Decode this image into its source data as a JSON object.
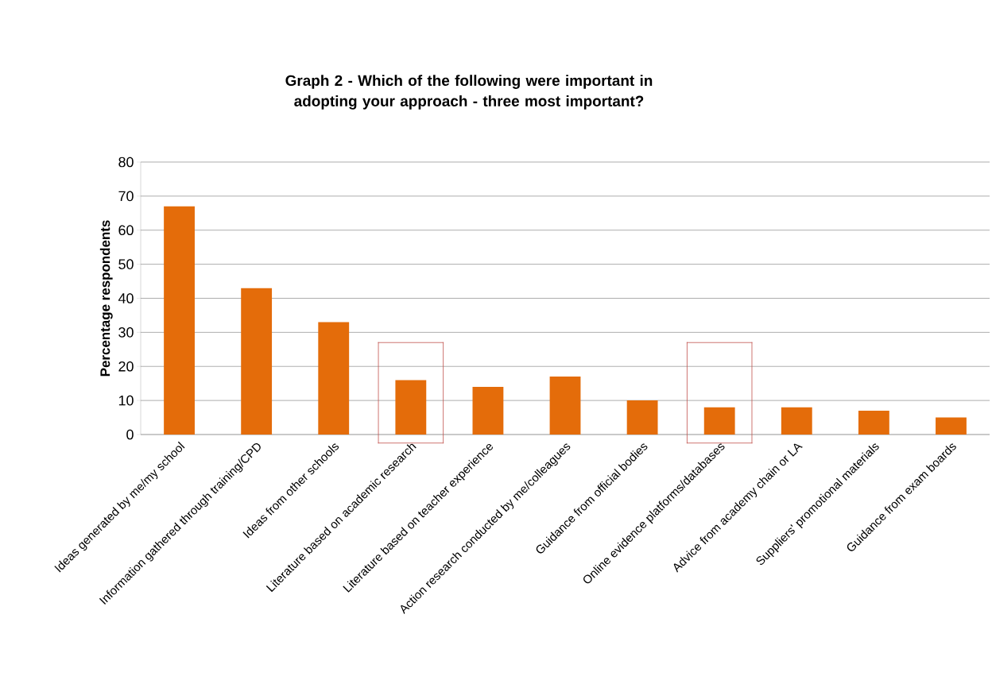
{
  "chart_data": {
    "type": "bar",
    "title": "Graph 2 - Which of the following were important in adopting your approach - three most important?",
    "ylabel": "Percentage respondents",
    "categories": [
      "Ideas generated by me/my school",
      "Information gathered through training/CPD",
      "Ideas from other schools",
      "Literature based on academic research",
      "Literature based on teacher experience",
      "Action research conducted by me/colleagues",
      "Guidance from official bodies",
      "Online evidence platforms/databases",
      "Advice from academy chain or LA",
      "Suppliers' promotional materials",
      "Guidance from exam boards"
    ],
    "values": [
      67,
      43,
      33,
      16,
      14,
      17,
      10,
      8,
      8,
      7,
      5
    ],
    "color": "#e46c0a",
    "ylim": [
      0,
      80
    ],
    "yticks": [
      0,
      10,
      20,
      30,
      40,
      50,
      60,
      70,
      80
    ],
    "grid": "y"
  }
}
